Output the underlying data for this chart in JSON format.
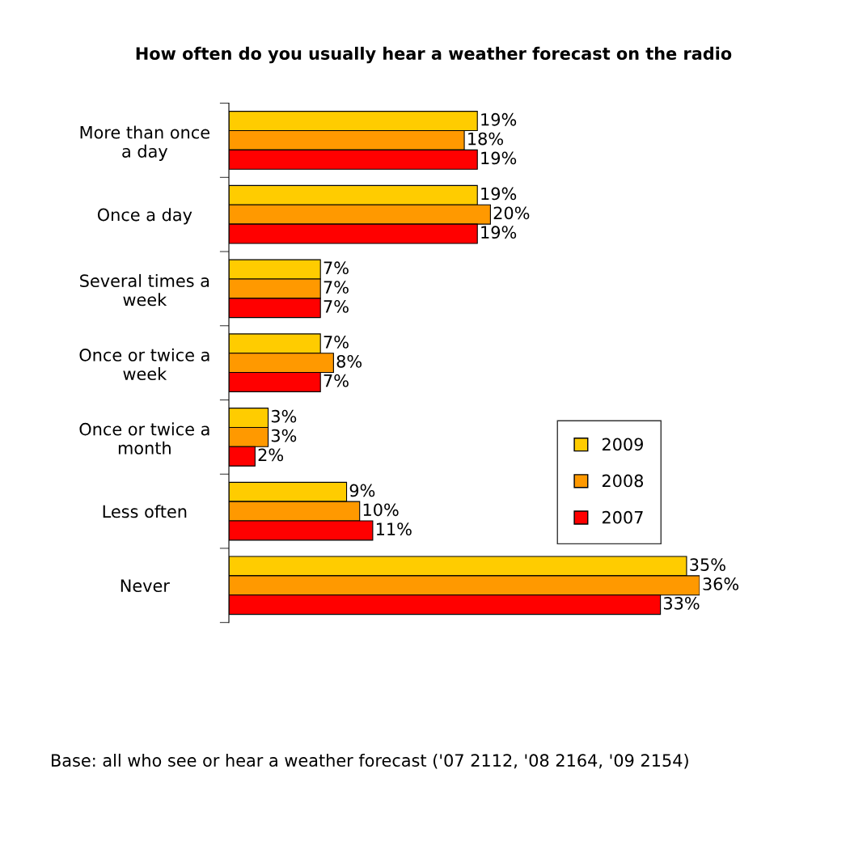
{
  "chart_data": {
    "type": "bar",
    "orientation": "horizontal",
    "title": "How often do you usually hear a weather forecast on the radio",
    "categories": [
      "More than once a day",
      "Once a day",
      "Several times a week",
      "Once or twice a week",
      "Once or twice a month",
      "Less often",
      "Never"
    ],
    "series": [
      {
        "name": "2009",
        "color": "#ffcc00",
        "values": [
          19,
          19,
          7,
          7,
          3,
          9,
          35
        ],
        "value_labels": [
          "19%",
          "19%",
          "7%",
          "7%",
          "3%",
          "9%",
          "35%"
        ]
      },
      {
        "name": "2008",
        "color": "#ff9900",
        "values": [
          18,
          20,
          7,
          8,
          3,
          10,
          36
        ],
        "value_labels": [
          "18%",
          "20%",
          "7%",
          "8%",
          "3%",
          "10%",
          "36%"
        ]
      },
      {
        "name": "2007",
        "color": "#ff0000",
        "values": [
          19,
          19,
          7,
          7,
          2,
          11,
          33
        ],
        "value_labels": [
          "19%",
          "19%",
          "7%",
          "7%",
          "2%",
          "11%",
          "33%"
        ]
      }
    ],
    "legend": "right",
    "grid": false,
    "annotations": [
      "Base: all who see or hear a weather forecast ('07 2112, '08 2164, '09 2154)"
    ]
  }
}
